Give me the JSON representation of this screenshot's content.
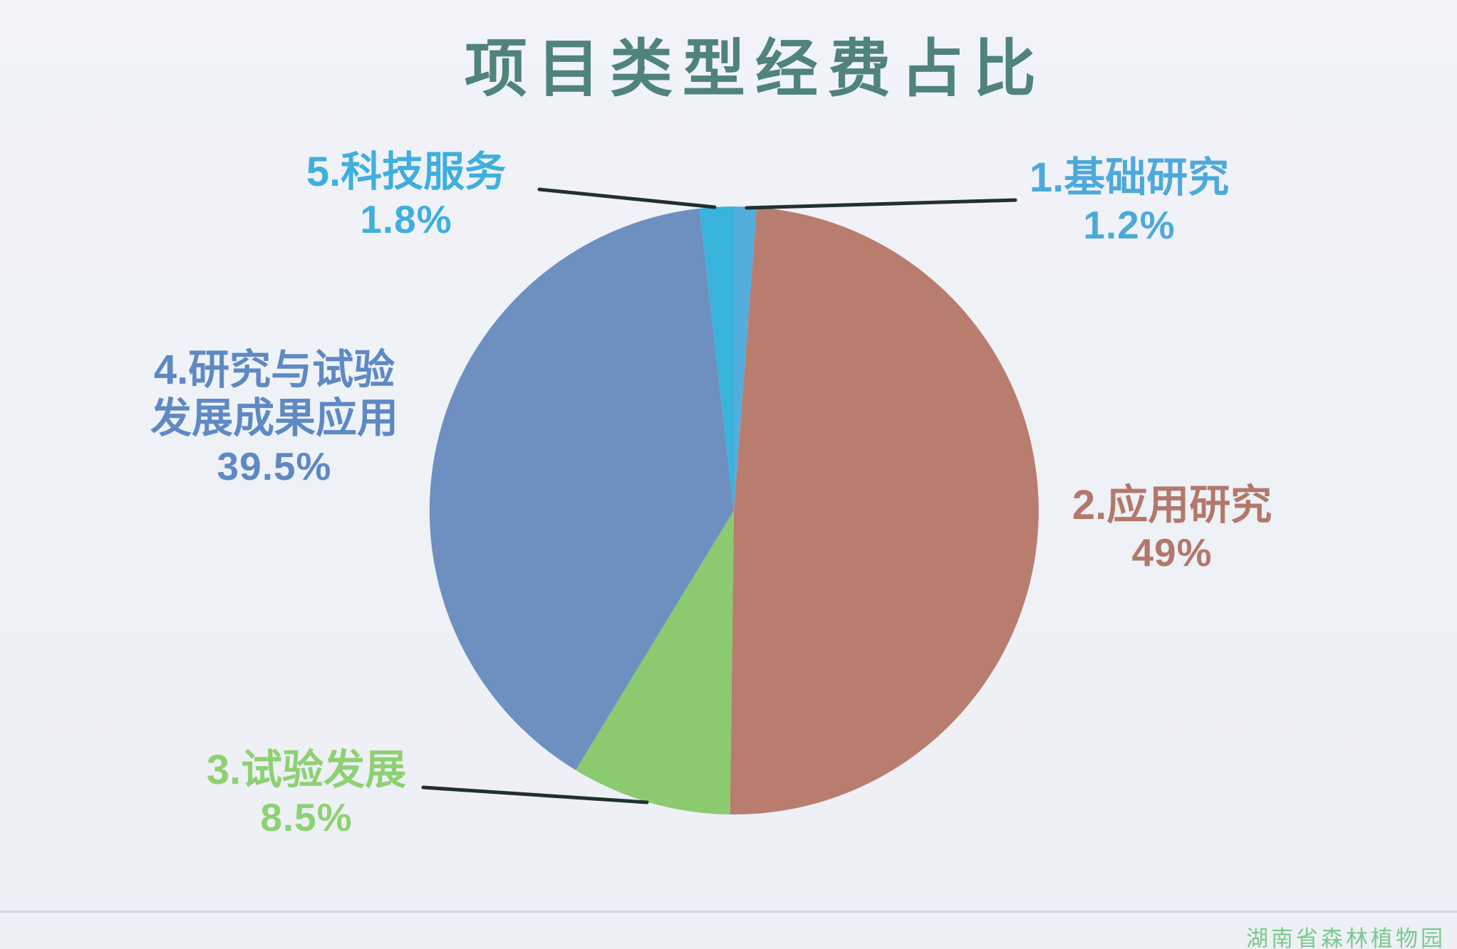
{
  "page": {
    "background": "#eef1f6"
  },
  "title": {
    "text": "项目类型经费占比",
    "color": "#4f837b"
  },
  "watermark": {
    "text": "湖南省森林植物园",
    "color": "#7cc98e"
  },
  "chart_data": {
    "type": "pie",
    "title": "项目类型经费占比",
    "unit": "percent",
    "direction": "clockwise",
    "start_angle_deg": 0,
    "legend_position": "callout-labels-around-pie",
    "total": 100,
    "slices": [
      {
        "name": "1.基础研究",
        "value": 1.2,
        "display": "1.2%",
        "color": "#53aedd",
        "label_color": "#4da9dc"
      },
      {
        "name": "2.应用研究",
        "value": 49,
        "display": "49%",
        "color": "#b97d6f",
        "label_color": "#b3786b"
      },
      {
        "name": "3.试验发展",
        "value": 8.5,
        "display": "8.5%",
        "color": "#8cca70",
        "label_color": "#8ed173"
      },
      {
        "name": "4.研究与试验发展成果应用",
        "value": 39.5,
        "display": "39.5%",
        "color": "#6d90c1",
        "label_color": "#5e89c4"
      },
      {
        "name": "5.科技服务",
        "value": 1.8,
        "display": "1.8%",
        "color": "#38b4dc",
        "label_color": "#3fafdd"
      }
    ]
  },
  "callouts": {
    "c1": {
      "line1": "1.基础研究",
      "line2": "1.2%"
    },
    "c2": {
      "line1": "2.应用研究",
      "line2": "49%"
    },
    "c3": {
      "line1": "3.试验发展",
      "line2": "8.5%"
    },
    "c4": {
      "line1": "4.研究与试验",
      "line2": "发展成果应用",
      "line3": "39.5%"
    },
    "c5": {
      "line1": "5.科技服务",
      "line2": "1.8%"
    }
  }
}
